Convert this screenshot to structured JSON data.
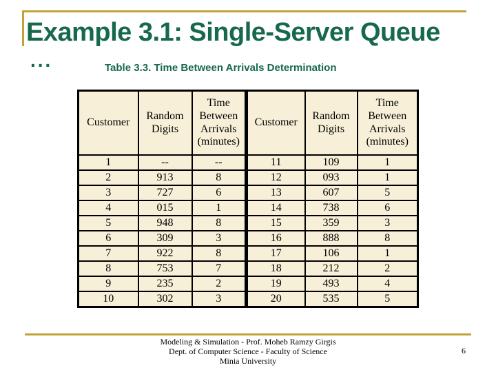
{
  "slide": {
    "title": "Example 3.1: Single-Server Queue",
    "overflow_bullet": "...",
    "subtitle": "Table 3.3. Time Between Arrivals Determination",
    "page_number": "6",
    "footer_lines": [
      "Modeling & Simulation - Prof. Moheb Ramzy Girgis",
      "Dept. of Computer Science - Faculty of Science",
      "Minia University"
    ]
  },
  "table": {
    "headers": [
      "Customer",
      "Random\nDigits",
      "Time\nBetween\nArrivals\n(minutes)",
      "Customer",
      "Random\nDigits",
      "Time\nBetween\nArrivals\n(minutes)"
    ],
    "rows": [
      [
        "1",
        "--",
        "--",
        "11",
        "109",
        "1"
      ],
      [
        "2",
        "913",
        "8",
        "12",
        "093",
        "1"
      ],
      [
        "3",
        "727",
        "6",
        "13",
        "607",
        "5"
      ],
      [
        "4",
        "015",
        "1",
        "14",
        "738",
        "6"
      ],
      [
        "5",
        "948",
        "8",
        "15",
        "359",
        "3"
      ],
      [
        "6",
        "309",
        "3",
        "16",
        "888",
        "8"
      ],
      [
        "7",
        "922",
        "8",
        "17",
        "106",
        "1"
      ],
      [
        "8",
        "753",
        "7",
        "18",
        "212",
        "2"
      ],
      [
        "9",
        "235",
        "2",
        "19",
        "493",
        "4"
      ],
      [
        "10",
        "302",
        "3",
        "20",
        "535",
        "5"
      ]
    ]
  },
  "colors": {
    "title_green": "#17694B",
    "accent_gold": "#C2A136",
    "table_background": "#F7EFD8",
    "text": "#000000"
  }
}
